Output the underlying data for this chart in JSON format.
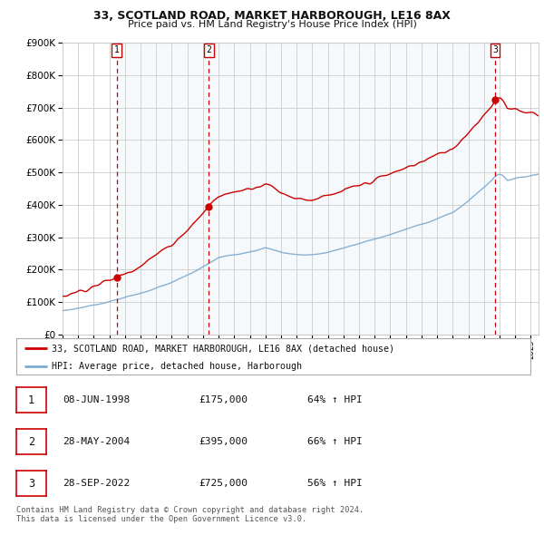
{
  "title": "33, SCOTLAND ROAD, MARKET HARBOROUGH, LE16 8AX",
  "subtitle": "Price paid vs. HM Land Registry's House Price Index (HPI)",
  "legend_property": "33, SCOTLAND ROAD, MARKET HARBOROUGH, LE16 8AX (detached house)",
  "legend_hpi": "HPI: Average price, detached house, Harborough",
  "sale1_date": "08-JUN-1998",
  "sale1_price": 175000,
  "sale1_hpi": "64% ↑ HPI",
  "sale2_date": "28-MAY-2004",
  "sale2_price": 395000,
  "sale2_hpi": "66% ↑ HPI",
  "sale3_date": "28-SEP-2022",
  "sale3_price": 725000,
  "sale3_hpi": "56% ↑ HPI",
  "footer": "Contains HM Land Registry data © Crown copyright and database right 2024.\nThis data is licensed under the Open Government Licence v3.0.",
  "property_color": "#cc0000",
  "hpi_color": "#7aaad0",
  "shade_color": "#ddeeff",
  "grid_color": "#cccccc",
  "dashed_color": "#cc0000",
  "background_color": "#ffffff",
  "ylim": [
    0,
    900000
  ],
  "yticks": [
    0,
    100000,
    200000,
    300000,
    400000,
    500000,
    600000,
    700000,
    800000,
    900000
  ],
  "start_year": 1995.0,
  "end_year": 2025.5
}
